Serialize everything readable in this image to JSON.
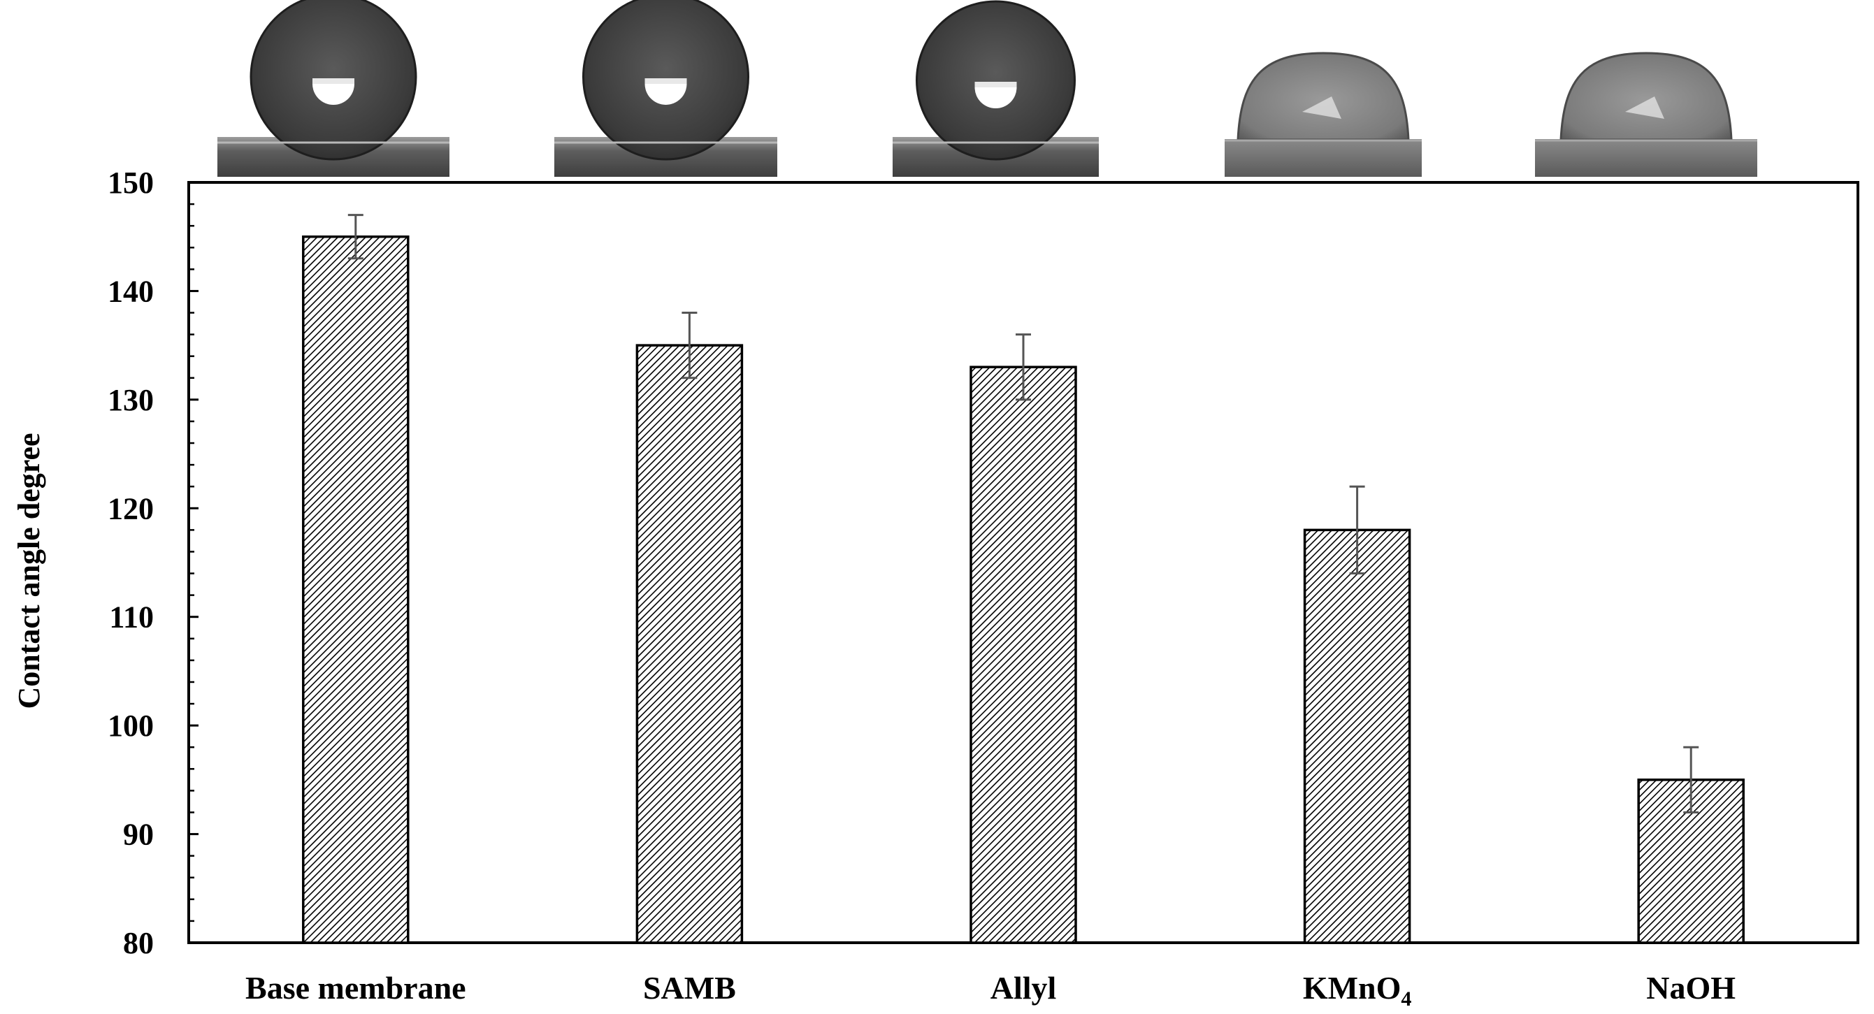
{
  "chart_data": {
    "type": "bar",
    "categories": [
      "Base membrane",
      "SAMB",
      "Allyl",
      "KMnO4",
      "NaOH"
    ],
    "category_display": [
      {
        "main": "Base membrane",
        "sub": ""
      },
      {
        "main": "SAMB",
        "sub": ""
      },
      {
        "main": "Allyl",
        "sub": ""
      },
      {
        "main": "KMnO",
        "sub": "4"
      },
      {
        "main": "NaOH",
        "sub": ""
      }
    ],
    "values": [
      145,
      135,
      133,
      118,
      95
    ],
    "error": [
      2,
      3,
      3,
      4,
      3
    ],
    "title": "",
    "xlabel": "",
    "ylabel": "Contact angle degree",
    "ylim": [
      80,
      150
    ],
    "yticks": [
      80,
      90,
      100,
      110,
      120,
      130,
      140,
      150
    ],
    "grid": false,
    "bar_fill": "diagonal-hatch",
    "colors": {
      "bar_stroke": "#000000",
      "hatch": "#000000",
      "error_bar": "#555555"
    },
    "inset_images": [
      "water-droplet-photo",
      "water-droplet-photo",
      "water-droplet-photo",
      "water-droplet-photo",
      "water-droplet-photo"
    ]
  }
}
